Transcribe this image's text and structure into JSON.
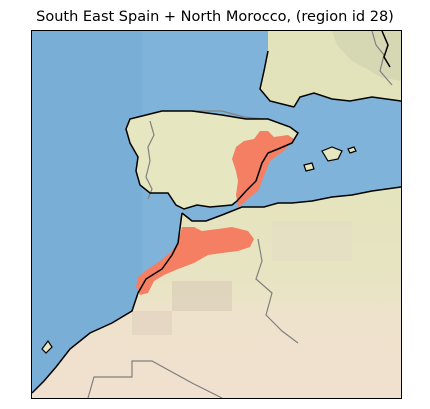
{
  "map": {
    "title": "South East Spain + North Morocco, (region id 28)",
    "colors": {
      "sea": "#7fb3d9",
      "land_north": "#e6e6bf",
      "land_south": "#efe0cc",
      "highlight": "#f47f63",
      "coastline": "#000000",
      "border": "#808080"
    },
    "highlighted_region": "region id 28"
  }
}
